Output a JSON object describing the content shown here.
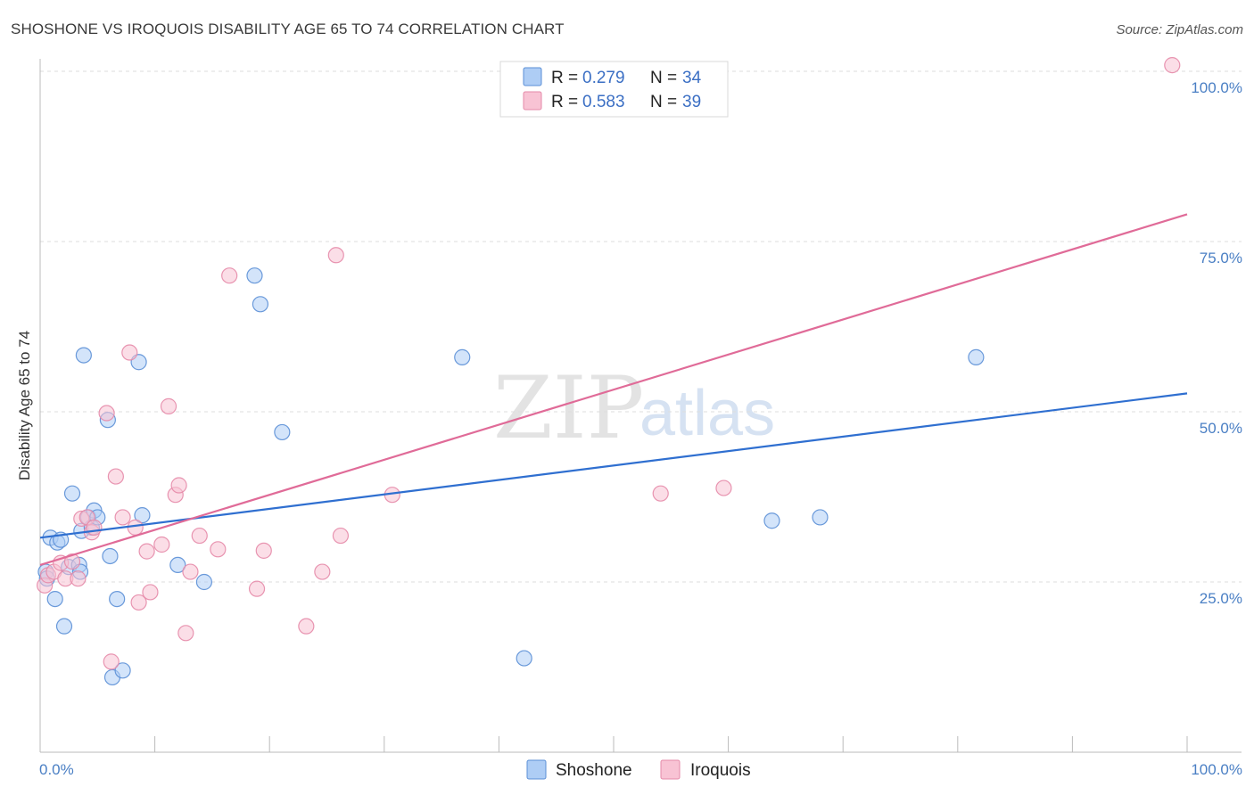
{
  "title": "SHOSHONE VS IROQUOIS DISABILITY AGE 65 TO 74 CORRELATION CHART",
  "source": "Source: ZipAtlas.com",
  "watermark": {
    "zip": "ZIP",
    "atlas": "atlas"
  },
  "colors": {
    "shoshone_fill": "#aecdf5",
    "shoshone_stroke": "#5b8fd6",
    "shoshone_line": "#2f6fd0",
    "iroquois_fill": "#f8c3d4",
    "iroquois_stroke": "#e58aa8",
    "iroquois_line": "#e06b98",
    "grid": "#dddddd",
    "axis_tick_text": "#4a7fc4"
  },
  "legend": {
    "rows": [
      {
        "r_label": "R = ",
        "r_value": "0.279",
        "n_label": "N = ",
        "n_value": "34"
      },
      {
        "r_label": "R = ",
        "r_value": "0.583",
        "n_label": "N = ",
        "n_value": "39"
      }
    ]
  },
  "bottom_legend": [
    "Shoshone",
    "Iroquois"
  ],
  "chart_data": {
    "type": "scatter",
    "title": "SHOSHONE VS IROQUOIS DISABILITY AGE 65 TO 74 CORRELATION CHART",
    "xlabel": "",
    "ylabel": "Disability Age 65 to 74",
    "xlim": [
      0,
      100
    ],
    "ylim": [
      0,
      100
    ],
    "x_tick_labels": [
      "0.0%",
      "100.0%"
    ],
    "y_tick_values": [
      25,
      50,
      75,
      100
    ],
    "y_tick_labels": [
      "25.0%",
      "50.0%",
      "75.0%",
      "100.0%"
    ],
    "series": [
      {
        "name": "Shoshone",
        "r": 0.279,
        "n": 34,
        "trend": {
          "x": [
            0,
            100
          ],
          "y": [
            31.5,
            52.7
          ]
        },
        "points": [
          [
            0.5,
            26.5
          ],
          [
            0.6,
            25.5
          ],
          [
            0.9,
            31.5
          ],
          [
            1.3,
            22.5
          ],
          [
            1.5,
            30.8
          ],
          [
            1.8,
            31.2
          ],
          [
            2.1,
            18.5
          ],
          [
            2.5,
            27.2
          ],
          [
            2.8,
            38.0
          ],
          [
            3.4,
            27.5
          ],
          [
            3.5,
            26.5
          ],
          [
            3.6,
            32.5
          ],
          [
            3.8,
            58.3
          ],
          [
            4.2,
            34.5
          ],
          [
            4.5,
            33.0
          ],
          [
            4.7,
            35.5
          ],
          [
            5.0,
            34.5
          ],
          [
            5.9,
            48.8
          ],
          [
            6.1,
            28.8
          ],
          [
            6.3,
            11.0
          ],
          [
            6.7,
            22.5
          ],
          [
            7.2,
            12.0
          ],
          [
            8.6,
            57.3
          ],
          [
            8.9,
            34.8
          ],
          [
            12.0,
            27.5
          ],
          [
            14.3,
            25.0
          ],
          [
            18.7,
            70.0
          ],
          [
            19.2,
            65.8
          ],
          [
            21.1,
            47.0
          ],
          [
            36.8,
            58.0
          ],
          [
            42.2,
            13.8
          ],
          [
            63.8,
            34.0
          ],
          [
            68.0,
            34.5
          ],
          [
            81.6,
            58.0
          ]
        ]
      },
      {
        "name": "Iroquois",
        "r": 0.583,
        "n": 39,
        "trend": {
          "x": [
            0,
            100
          ],
          "y": [
            27.5,
            79.0
          ]
        },
        "points": [
          [
            0.4,
            24.5
          ],
          [
            0.7,
            26.0
          ],
          [
            1.2,
            26.5
          ],
          [
            1.8,
            27.8
          ],
          [
            2.2,
            25.5
          ],
          [
            2.8,
            28.0
          ],
          [
            3.3,
            25.5
          ],
          [
            3.6,
            34.3
          ],
          [
            4.1,
            34.5
          ],
          [
            4.5,
            32.3
          ],
          [
            4.7,
            33.0
          ],
          [
            5.8,
            49.8
          ],
          [
            6.2,
            13.3
          ],
          [
            6.6,
            40.5
          ],
          [
            7.2,
            34.5
          ],
          [
            7.8,
            58.7
          ],
          [
            8.3,
            33.0
          ],
          [
            8.6,
            22.0
          ],
          [
            9.3,
            29.5
          ],
          [
            9.6,
            23.5
          ],
          [
            10.6,
            30.5
          ],
          [
            11.2,
            50.8
          ],
          [
            11.8,
            37.8
          ],
          [
            12.1,
            39.2
          ],
          [
            12.7,
            17.5
          ],
          [
            13.1,
            26.5
          ],
          [
            13.9,
            31.8
          ],
          [
            15.5,
            29.8
          ],
          [
            16.5,
            70.0
          ],
          [
            18.9,
            24.0
          ],
          [
            19.5,
            29.6
          ],
          [
            23.2,
            18.5
          ],
          [
            24.6,
            26.5
          ],
          [
            25.8,
            73.0
          ],
          [
            26.2,
            31.8
          ],
          [
            30.7,
            37.8
          ],
          [
            54.1,
            38.0
          ],
          [
            59.6,
            38.8
          ],
          [
            98.7,
            100.9
          ]
        ]
      }
    ]
  }
}
